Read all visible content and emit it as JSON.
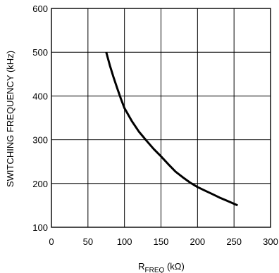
{
  "chart_data": {
    "type": "line",
    "xlabel_main": "R",
    "xlabel_sub": "FREQ",
    "xlabel_unit": " (kΩ)",
    "ylabel": "SWITCHING FREQUENCY (kHz)",
    "xlim": [
      0,
      300
    ],
    "ylim": [
      100,
      600
    ],
    "grid": true,
    "x_ticks": [
      0,
      50,
      100,
      150,
      200,
      250,
      300
    ],
    "y_ticks": [
      100,
      200,
      300,
      400,
      500,
      600
    ],
    "series": [
      {
        "x": [
          75,
          80,
          85,
          90,
          95,
          100,
          110,
          120,
          130,
          140,
          150,
          160,
          170,
          180,
          190,
          200,
          210,
          220,
          230,
          240,
          255
        ],
        "y": [
          500,
          470,
          443,
          418,
          394,
          372,
          343,
          318,
          298,
          279,
          262,
          244,
          227,
          214,
          202,
          192,
          184,
          176,
          168,
          161,
          150
        ]
      }
    ]
  },
  "colors": {
    "grid": "#000000",
    "line": "#000000"
  }
}
